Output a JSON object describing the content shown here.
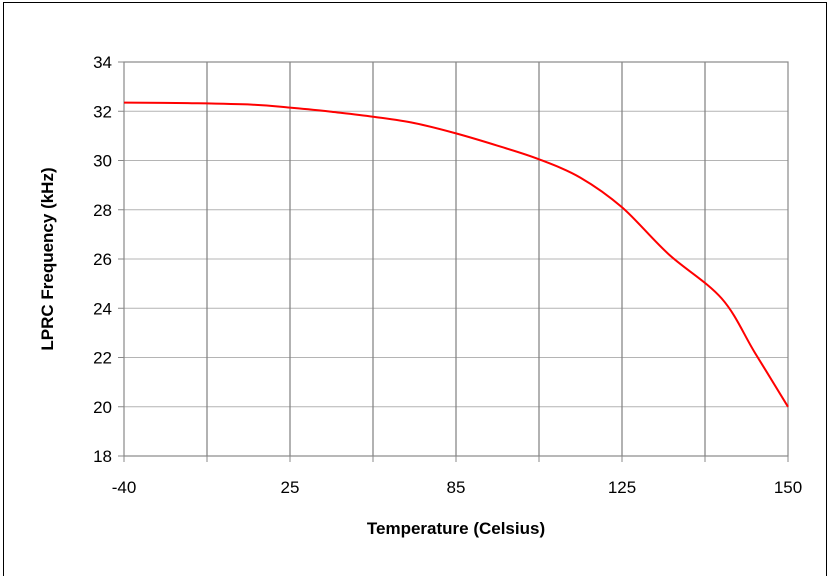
{
  "chart_data": {
    "type": "line",
    "title": "",
    "xlabel": "Temperature (Celsius)",
    "ylabel": "LPRC Frequency (kHz)",
    "x_tick_labels": [
      "-40",
      "",
      "25",
      "",
      "85",
      "",
      "125",
      "",
      "150"
    ],
    "ylim": [
      18,
      34
    ],
    "y_ticks": [
      18,
      20,
      22,
      24,
      26,
      28,
      30,
      32,
      34
    ],
    "grid": {
      "vertical": true,
      "horizontal": true
    },
    "line_color": "#ff0000",
    "series": [
      {
        "x": [
          -40,
          -15,
          10,
          25,
          40,
          55,
          70,
          85,
          95,
          105,
          115,
          125,
          132,
          140,
          145,
          150
        ],
        "values": [
          32.35,
          32.33,
          32.27,
          32.15,
          31.98,
          31.78,
          31.52,
          31.1,
          30.6,
          30.05,
          29.3,
          28.1,
          26.2,
          24.4,
          22.2,
          20.0
        ]
      }
    ]
  }
}
